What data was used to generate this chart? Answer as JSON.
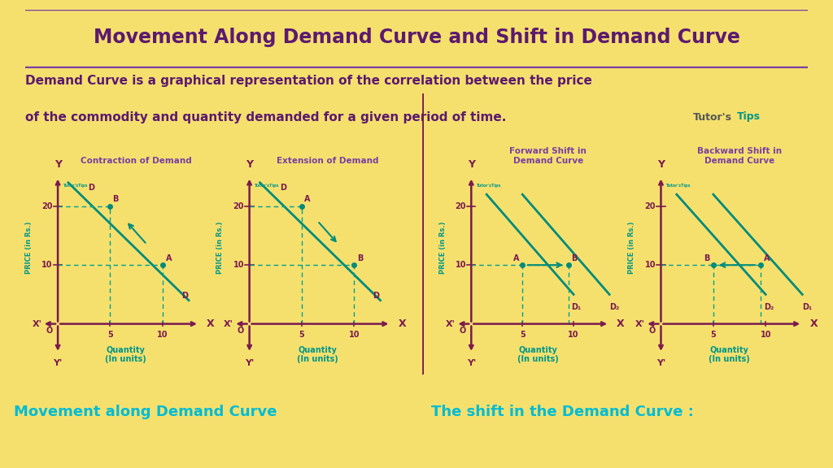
{
  "bg_color": "#f5e06e",
  "title": "Movement Along Demand Curve and Shift in Demand Curve",
  "title_color": "#5c1a6e",
  "title_border": "#7b3fa0",
  "desc_line1": "Demand Curve is a graphical representation of the correlation between the price",
  "desc_line2": "of the commodity and quantity demanded for a given period of time.",
  "desc_color": "#5c1a6e",
  "axis_color": "#7b1a4e",
  "curve_color": "#008b7a",
  "dashed_color": "#00a090",
  "label_color": "#009688",
  "title_label_color": "#7b3fa0",
  "bottom_left_label": "Movement along Demand Curve",
  "bottom_right_label": "The shift in the Demand Curve :",
  "bottom_color": "#00bcd4",
  "watermark_color": "#009688",
  "graphs": [
    {
      "title": "Contraction of Demand",
      "type": "contraction"
    },
    {
      "title": "Extension of Demand",
      "type": "extension"
    },
    {
      "title": "Forward Shift in\nDemand Curve",
      "type": "forward_shift",
      "D1_label": "D₁",
      "D2_label": "D₂"
    },
    {
      "title": "Backward Shift in\nDemand Curve",
      "type": "backward_shift",
      "D1_label": "D₁",
      "D2_label": "D₂"
    }
  ]
}
